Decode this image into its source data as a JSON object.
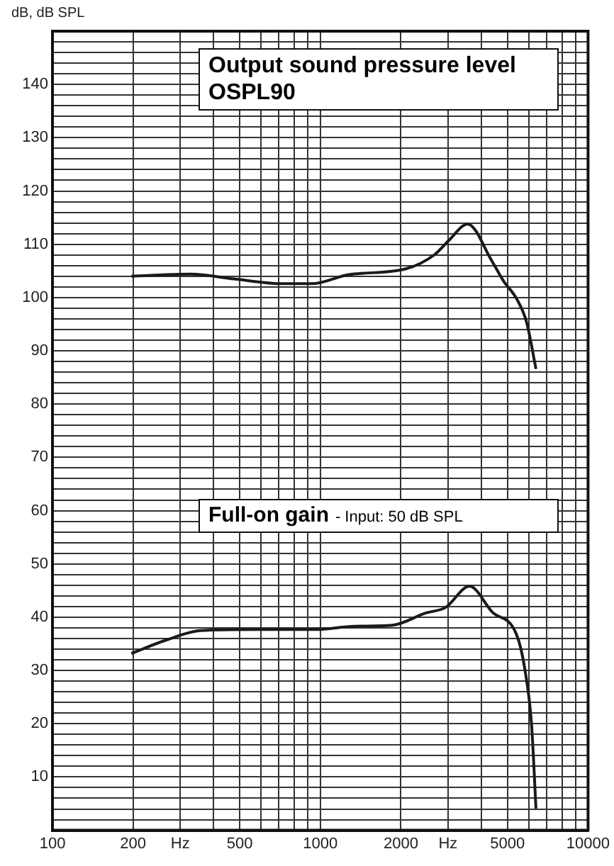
{
  "chart_data": {
    "type": "line",
    "ylabel": "dB, dB SPL",
    "log": "x",
    "grid": true,
    "legend": false,
    "marker": "none",
    "line_style": "solid",
    "xlim": [
      100,
      10000
    ],
    "ylim": [
      0,
      150
    ],
    "xticks": [
      100,
      200,
      {
        "value": 300,
        "label": "Hz"
      },
      {
        "value": 400,
        "label": null
      },
      500,
      {
        "value": 600,
        "label": null
      },
      {
        "value": 700,
        "label": null
      },
      {
        "value": 800,
        "label": null
      },
      {
        "value": 900,
        "label": null
      },
      1000,
      2000,
      {
        "value": 3000,
        "label": "Hz"
      },
      {
        "value": 4000,
        "label": null
      },
      5000,
      {
        "value": 6000,
        "label": null
      },
      {
        "value": 7000,
        "label": null
      },
      {
        "value": 8000,
        "label": null
      },
      {
        "value": 9000,
        "label": null
      },
      10000
    ],
    "yticks": [
      {
        "value": 0,
        "label": null
      },
      {
        "value": 2,
        "label": null
      },
      {
        "value": 4,
        "label": null
      },
      {
        "value": 6,
        "label": null
      },
      {
        "value": 8,
        "label": null
      },
      10,
      {
        "value": 12,
        "label": null
      },
      {
        "value": 14,
        "label": null
      },
      {
        "value": 16,
        "label": null
      },
      {
        "value": 18,
        "label": null
      },
      20,
      {
        "value": 22,
        "label": null
      },
      {
        "value": 24,
        "label": null
      },
      {
        "value": 26,
        "label": null
      },
      {
        "value": 28,
        "label": null
      },
      30,
      {
        "value": 32,
        "label": null
      },
      {
        "value": 34,
        "label": null
      },
      {
        "value": 36,
        "label": null
      },
      {
        "value": 38,
        "label": null
      },
      40,
      {
        "value": 42,
        "label": null
      },
      {
        "value": 44,
        "label": null
      },
      {
        "value": 46,
        "label": null
      },
      {
        "value": 48,
        "label": null
      },
      50,
      {
        "value": 52,
        "label": null
      },
      {
        "value": 54,
        "label": null
      },
      {
        "value": 56,
        "label": null
      },
      {
        "value": 58,
        "label": null
      },
      60,
      {
        "value": 62,
        "label": null
      },
      {
        "value": 64,
        "label": null
      },
      {
        "value": 66,
        "label": null
      },
      {
        "value": 68,
        "label": null
      },
      70,
      {
        "value": 72,
        "label": null
      },
      {
        "value": 74,
        "label": null
      },
      {
        "value": 76,
        "label": null
      },
      {
        "value": 78,
        "label": null
      },
      80,
      {
        "value": 82,
        "label": null
      },
      {
        "value": 84,
        "label": null
      },
      {
        "value": 86,
        "label": null
      },
      {
        "value": 88,
        "label": null
      },
      90,
      {
        "value": 92,
        "label": null
      },
      {
        "value": 94,
        "label": null
      },
      {
        "value": 96,
        "label": null
      },
      {
        "value": 98,
        "label": null
      },
      100,
      {
        "value": 102,
        "label": null
      },
      {
        "value": 104,
        "label": null
      },
      {
        "value": 106,
        "label": null
      },
      {
        "value": 108,
        "label": null
      },
      110,
      {
        "value": 112,
        "label": null
      },
      {
        "value": 114,
        "label": null
      },
      {
        "value": 116,
        "label": null
      },
      {
        "value": 118,
        "label": null
      },
      120,
      {
        "value": 122,
        "label": null
      },
      {
        "value": 124,
        "label": null
      },
      {
        "value": 126,
        "label": null
      },
      {
        "value": 128,
        "label": null
      },
      130,
      {
        "value": 132,
        "label": null
      },
      {
        "value": 134,
        "label": null
      },
      {
        "value": 136,
        "label": null
      },
      {
        "value": 138,
        "label": null
      },
      140,
      {
        "value": 142,
        "label": null
      },
      {
        "value": 144,
        "label": null
      },
      {
        "value": 146,
        "label": null
      },
      {
        "value": 148,
        "label": null
      },
      {
        "value": 150,
        "label": null
      }
    ],
    "series": [
      {
        "name": "Output sound pressure level OSPL90",
        "color": "#1a1a1a",
        "x": [
          197,
          328,
          476,
          725,
          928,
          1280,
          2090,
          2680,
          3030,
          3550,
          4380,
          4820,
          5420,
          5900,
          6390
        ],
        "values": [
          104,
          104.4,
          103.5,
          102.6,
          102.6,
          104.3,
          105.4,
          108.1,
          110.8,
          113.8,
          106.8,
          103.2,
          99.7,
          95.3,
          86.6
        ]
      },
      {
        "name": "Full-on gain",
        "color": "#1a1a1a",
        "x": [
          197,
          269,
          357,
          588,
          964,
          1340,
          1860,
          2480,
          2930,
          3610,
          4380,
          5420,
          5800,
          6150,
          6390
        ],
        "values": [
          33.2,
          35.8,
          37.5,
          37.7,
          37.7,
          38.3,
          38.5,
          40.8,
          41.8,
          45.8,
          41,
          36.6,
          30.4,
          19.9,
          4.1
        ]
      }
    ],
    "annotations": [
      "- Input: 50 dB SPL"
    ]
  }
}
